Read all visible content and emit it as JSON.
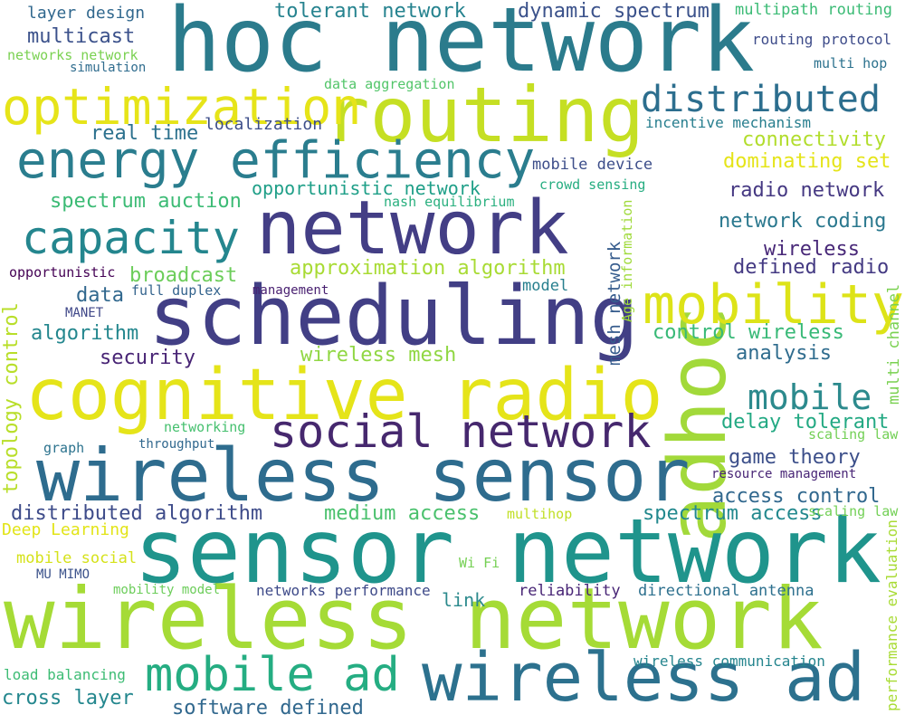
{
  "words": [
    {
      "text": "hoc network",
      "color": "#2b7b8c"
    },
    {
      "text": "routing",
      "color": "#c5df23"
    },
    {
      "text": "adhoc",
      "color": "#a2d93a"
    },
    {
      "text": "optimization",
      "color": "#e6e419"
    },
    {
      "text": "distributed",
      "color": "#2c6e8e"
    },
    {
      "text": "energy efficiency",
      "color": "#2a7d8e"
    },
    {
      "text": "network",
      "color": "#433e85"
    },
    {
      "text": "capacity",
      "color": "#24868e"
    },
    {
      "text": "scheduling",
      "color": "#423f85"
    },
    {
      "text": "mobility",
      "color": "#dde318"
    },
    {
      "text": "cognitive radio",
      "color": "#e5e419"
    },
    {
      "text": "social network",
      "color": "#46286e"
    },
    {
      "text": "wireless sensor",
      "color": "#2e6c8e"
    },
    {
      "text": "sensor network",
      "color": "#1f948c"
    },
    {
      "text": "wireless network",
      "color": "#a5db36"
    },
    {
      "text": "mobile ad",
      "color": "#25ad82"
    },
    {
      "text": "wireless ad",
      "color": "#2c718e"
    },
    {
      "text": "mobile",
      "color": "#2c8a8d"
    },
    {
      "text": "layer design",
      "color": "#31688e"
    },
    {
      "text": "multicast",
      "color": "#3b518b"
    },
    {
      "text": "networks network",
      "color": "#7ad151"
    },
    {
      "text": "simulation",
      "color": "#2f6c8e"
    },
    {
      "text": "tolerant network",
      "color": "#26838f"
    },
    {
      "text": "dynamic spectrum",
      "color": "#3b528b"
    },
    {
      "text": "multipath routing",
      "color": "#3bbb75"
    },
    {
      "text": "routing protocol",
      "color": "#3e4c8a"
    },
    {
      "text": "multi hop",
      "color": "#2c728e"
    },
    {
      "text": "data aggregation",
      "color": "#52c569"
    },
    {
      "text": "localization",
      "color": "#3d4e8a"
    },
    {
      "text": "real time",
      "color": "#2c718e"
    },
    {
      "text": "incentive mechanism",
      "color": "#277e8e"
    },
    {
      "text": "connectivity",
      "color": "#b2dd2d"
    },
    {
      "text": "dominating set",
      "color": "#e5e419"
    },
    {
      "text": "mobile device",
      "color": "#3d4e8a"
    },
    {
      "text": "crowd sensing",
      "color": "#26ad81"
    },
    {
      "text": "opportunistic network",
      "color": "#1f9f88"
    },
    {
      "text": "nash equilibrium",
      "color": "#2ab07f"
    },
    {
      "text": "spectrum auction",
      "color": "#3cbb75"
    },
    {
      "text": "radio network",
      "color": "#453882"
    },
    {
      "text": "network coding",
      "color": "#2a788e"
    },
    {
      "text": "wireless",
      "color": "#482878"
    },
    {
      "text": "defined radio",
      "color": "#443a83"
    },
    {
      "text": "approximation algorithm",
      "color": "#a8db34"
    },
    {
      "text": "broadcast",
      "color": "#6ccd5a"
    },
    {
      "text": "opportunistic",
      "color": "#440154"
    },
    {
      "text": "full duplex",
      "color": "#33638d"
    },
    {
      "text": "management",
      "color": "#481f70"
    },
    {
      "text": "data",
      "color": "#31688e"
    },
    {
      "text": "MANET",
      "color": "#3f4788"
    },
    {
      "text": "model",
      "color": "#277f8e"
    },
    {
      "text": "algorithm",
      "color": "#24878e"
    },
    {
      "text": "control wireless",
      "color": "#38b977"
    },
    {
      "text": "security",
      "color": "#482475"
    },
    {
      "text": "wireless mesh",
      "color": "#90d743"
    },
    {
      "text": "analysis",
      "color": "#2f6c8e"
    },
    {
      "text": "networking",
      "color": "#46c06f"
    },
    {
      "text": "throughput",
      "color": "#31688e"
    },
    {
      "text": "graph",
      "color": "#2c738e"
    },
    {
      "text": "delay tolerant",
      "color": "#23a983"
    },
    {
      "text": "scaling law",
      "color": "#73d056"
    },
    {
      "text": "game theory",
      "color": "#3c4f8a"
    },
    {
      "text": "resource management",
      "color": "#482576"
    },
    {
      "text": "access control",
      "color": "#31688e"
    },
    {
      "text": "distributed algorithm",
      "color": "#3e4c8a"
    },
    {
      "text": "medium access",
      "color": "#4ac16d"
    },
    {
      "text": "spectrum access",
      "color": "#23898e"
    },
    {
      "text": "multihop",
      "color": "#c0df25"
    },
    {
      "text": "scaling law",
      "color": "#73d056"
    },
    {
      "text": "Deep Learning",
      "color": "#e2e418"
    },
    {
      "text": "mobile social",
      "color": "#d5e21a"
    },
    {
      "text": "Wi Fi",
      "color": "#75d054"
    },
    {
      "text": "MU MIMO",
      "color": "#3b528b"
    },
    {
      "text": "mobility model",
      "color": "#6ccd5a"
    },
    {
      "text": "networks performance",
      "color": "#3e4a89"
    },
    {
      "text": "link",
      "color": "#2c8a8d"
    },
    {
      "text": "reliability",
      "color": "#482576"
    },
    {
      "text": "directional antenna",
      "color": "#2d708e"
    },
    {
      "text": "load balancing",
      "color": "#3dbc74"
    },
    {
      "text": "wireless communication",
      "color": "#25858e"
    },
    {
      "text": "cross layer",
      "color": "#24878e"
    },
    {
      "text": "software defined",
      "color": "#31688e"
    },
    {
      "text": "mesh network",
      "color": "#365c8d"
    },
    {
      "text": "Age information",
      "color": "#9fda3a"
    },
    {
      "text": "topology control",
      "color": "#b8de29"
    },
    {
      "text": "multi channel",
      "color": "#7ad151"
    },
    {
      "text": "performance evaluation",
      "color": "#a8db34"
    }
  ]
}
